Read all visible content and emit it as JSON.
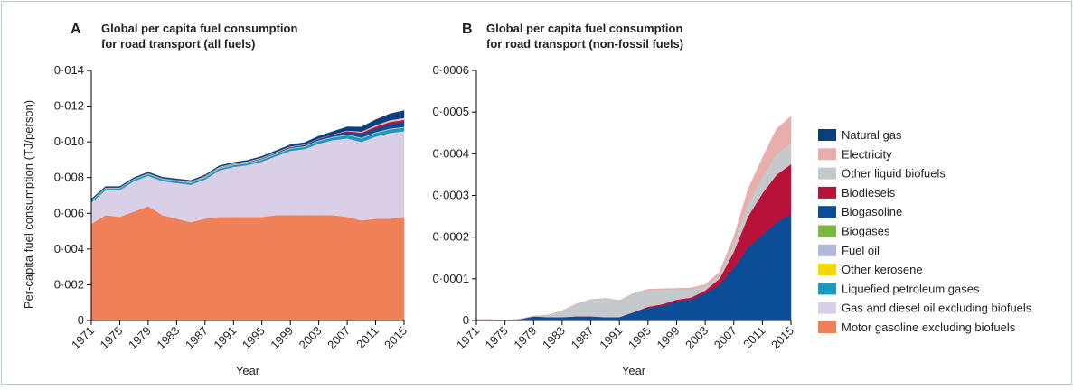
{
  "chart_data": [
    {
      "type": "area",
      "panel": "A",
      "title": [
        "Global per capita fuel consumption",
        "for road transport (all fuels)"
      ],
      "ylabel": "Per-capita fuel consumption (TJ/person)",
      "xlabel": "Year",
      "x": [
        1971,
        1973,
        1975,
        1977,
        1979,
        1981,
        1983,
        1985,
        1987,
        1989,
        1991,
        1993,
        1995,
        1997,
        1999,
        2001,
        2003,
        2005,
        2007,
        2009,
        2011,
        2013,
        2015
      ],
      "xlim": [
        1971,
        2015
      ],
      "xticks": [
        1971,
        1975,
        1979,
        1983,
        1987,
        1991,
        1995,
        1999,
        2003,
        2007,
        2011,
        2015
      ],
      "ylim": [
        0,
        0.014
      ],
      "yticks": [
        0,
        {
          "value": 0.002,
          "label": "0·002"
        },
        {
          "value": 0.004,
          "label": "0·004"
        },
        {
          "value": 0.006,
          "label": "0·006"
        },
        {
          "value": 0.008,
          "label": "0·008"
        },
        {
          "value": 0.01,
          "label": "0·010"
        },
        {
          "value": 0.012,
          "label": "0·012"
        },
        {
          "value": 0.014,
          "label": "0·014"
        }
      ],
      "series": [
        {
          "name": "Motor gasoline excluding biofuels",
          "color": "#f08058",
          "values": [
            0.0054,
            0.0059,
            0.0058,
            0.0061,
            0.0064,
            0.0059,
            0.0057,
            0.0055,
            0.0057,
            0.0058,
            0.0058,
            0.0058,
            0.0058,
            0.0059,
            0.0059,
            0.0059,
            0.0059,
            0.0059,
            0.0058,
            0.0056,
            0.0057,
            0.0057,
            0.0058
          ]
        },
        {
          "name": "Gas and diesel oil excluding biofuels",
          "color": "#d9d0e8",
          "values": [
            0.0012,
            0.0014,
            0.0015,
            0.0017,
            0.0017,
            0.0019,
            0.002,
            0.0021,
            0.0022,
            0.0026,
            0.0028,
            0.0029,
            0.0031,
            0.0033,
            0.0036,
            0.0037,
            0.004,
            0.0042,
            0.0044,
            0.0044,
            0.0046,
            0.0048,
            0.0048
          ]
        },
        {
          "name": "Liquefied petroleum gases",
          "color": "#1a9ac0",
          "values": [
            0.0001,
            0.0001,
            0.0001,
            0.0001,
            0.0001,
            0.0001,
            0.0001,
            0.0001,
            0.0001,
            0.0001,
            0.0001,
            0.0001,
            0.0001,
            0.0001,
            0.00012,
            0.00012,
            0.00015,
            0.00015,
            0.00018,
            0.0002,
            0.0002,
            0.0002,
            0.0002
          ]
        },
        {
          "name": "Other kerosene",
          "color": "#f5d800",
          "values": [
            0,
            0,
            0,
            0,
            0,
            0,
            0,
            0,
            0,
            0,
            0,
            0,
            0,
            0,
            0,
            0,
            0,
            0,
            0,
            0,
            0,
            0,
            0
          ]
        },
        {
          "name": "Fuel oil",
          "color": "#b0b8dc",
          "values": [
            5e-05,
            5e-05,
            5e-05,
            5e-05,
            5e-05,
            5e-05,
            5e-05,
            5e-05,
            5e-05,
            5e-05,
            5e-05,
            5e-05,
            5e-05,
            5e-05,
            5e-05,
            5e-05,
            5e-05,
            5e-05,
            5e-05,
            5e-05,
            5e-05,
            5e-05,
            5e-05
          ]
        },
        {
          "name": "Biogases",
          "color": "#7cb940",
          "values": [
            0,
            0,
            0,
            0,
            0,
            0,
            0,
            0,
            0,
            0,
            0,
            0,
            0,
            0,
            0,
            0,
            0,
            0,
            0,
            0,
            0,
            0,
            0
          ]
        },
        {
          "name": "Biogasoline",
          "color": "#0b4d96",
          "values": [
            0,
            0,
            0,
            0,
            1e-05,
            1e-05,
            1e-05,
            1e-05,
            1e-05,
            1e-05,
            1e-05,
            2e-05,
            3e-05,
            4e-05,
            5e-05,
            5e-05,
            7e-05,
            9e-05,
            0.00013,
            0.00018,
            0.0002,
            0.00024,
            0.00026
          ]
        },
        {
          "name": "Biodiesels",
          "color": "#b8123a",
          "values": [
            0,
            0,
            0,
            0,
            0,
            0,
            0,
            0,
            0,
            0,
            0,
            0,
            0,
            0,
            0,
            1e-05,
            1e-05,
            2e-05,
            4e-05,
            8e-05,
            0.0001,
            0.00012,
            0.00012
          ]
        },
        {
          "name": "Other liquid biofuels",
          "color": "#c6c9cc",
          "values": [
            0,
            0,
            0,
            0,
            0,
            1e-05,
            2e-05,
            3e-05,
            4e-05,
            5e-05,
            4e-05,
            5e-05,
            4e-05,
            4e-05,
            3e-05,
            2e-05,
            1e-05,
            1e-05,
            2e-05,
            3e-05,
            4e-05,
            5e-05,
            5e-05
          ]
        },
        {
          "name": "Electricity",
          "color": "#e8aeac",
          "values": [
            0,
            0,
            0,
            0,
            0,
            0,
            0,
            0,
            0,
            0,
            0,
            0,
            1e-05,
            1e-05,
            1e-05,
            1e-05,
            1e-05,
            1e-05,
            2e-05,
            4e-05,
            5e-05,
            6e-05,
            7e-05
          ]
        },
        {
          "name": "Natural gas",
          "color": "#0a3f7e",
          "values": [
            5e-05,
            5e-05,
            5e-05,
            5e-05,
            5e-05,
            5e-05,
            5e-05,
            5e-05,
            5e-05,
            5e-05,
            5e-05,
            5e-05,
            6e-05,
            7e-05,
            8e-05,
            0.0001,
            0.00012,
            0.00015,
            0.0002,
            0.00025,
            0.0003,
            0.00035,
            0.0004
          ]
        }
      ]
    },
    {
      "type": "area",
      "panel": "B",
      "title": [
        "Global per capita fuel consumption",
        "for road transport (non-fossil fuels)"
      ],
      "xlabel": "Year",
      "x": [
        1971,
        1973,
        1975,
        1977,
        1979,
        1981,
        1983,
        1985,
        1987,
        1989,
        1991,
        1993,
        1995,
        1997,
        1999,
        2001,
        2003,
        2005,
        2007,
        2009,
        2011,
        2013,
        2015
      ],
      "xlim": [
        1971,
        2015
      ],
      "xticks": [
        1971,
        1975,
        1979,
        1983,
        1987,
        1991,
        1995,
        1999,
        2003,
        2007,
        2011,
        2015
      ],
      "ylim": [
        0,
        0.0006
      ],
      "yticks": [
        0,
        {
          "value": 0.0001,
          "label": "0·0001"
        },
        {
          "value": 0.0002,
          "label": "0·0002"
        },
        {
          "value": 0.0003,
          "label": "0·0003"
        },
        {
          "value": 0.0004,
          "label": "0·0004"
        },
        {
          "value": 0.0005,
          "label": "0·0005"
        },
        {
          "value": 0.0006,
          "label": "0·0006"
        }
      ],
      "series": [
        {
          "color": "#0b4d96",
          "values": [
            2e-06,
            2e-06,
            0,
            3e-06,
            1e-05,
            8e-06,
            8e-06,
            1e-05,
            1e-05,
            8e-06,
            8e-06,
            2e-05,
            3e-05,
            3.5e-05,
            4.5e-05,
            5e-05,
            6.5e-05,
            8.5e-05,
            0.000125,
            0.000175,
            0.000205,
            0.000235,
            0.000255
          ]
        },
        {
          "color": "#b8123a",
          "values": [
            0,
            0,
            0,
            0,
            0,
            0,
            0,
            0,
            0,
            0,
            0,
            0,
            3e-06,
            4e-06,
            5e-06,
            5e-06,
            7e-06,
            1.5e-05,
            4e-05,
            7.5e-05,
            0.0001,
            0.000115,
            0.00012
          ]
        },
        {
          "color": "#c6c9cc",
          "values": [
            0,
            0,
            0,
            0,
            0,
            5e-06,
            1.5e-05,
            3e-05,
            4e-05,
            4.5e-05,
            4e-05,
            4.5e-05,
            4e-05,
            3.5e-05,
            2.5e-05,
            2e-05,
            1e-05,
            1e-05,
            2e-05,
            3e-05,
            4e-05,
            5e-05,
            5e-05
          ]
        },
        {
          "color": "#e8aeac",
          "values": [
            0,
            0,
            0,
            0,
            0,
            0,
            0,
            0,
            0,
            0,
            0,
            0,
            2e-06,
            2e-06,
            2e-06,
            3e-06,
            4e-06,
            6e-06,
            1.5e-05,
            3.5e-05,
            4.5e-05,
            6e-05,
            6.5e-05
          ]
        }
      ]
    }
  ]
}
